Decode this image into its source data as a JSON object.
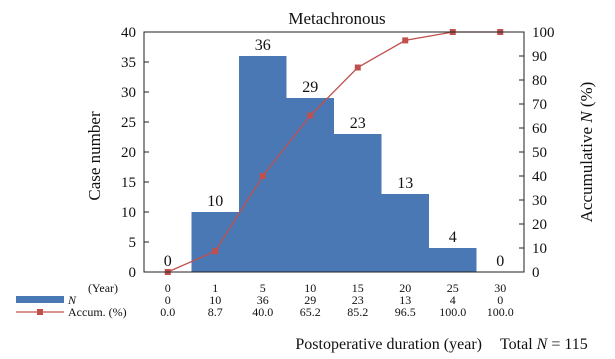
{
  "chart_data": {
    "type": "bar",
    "title": "Metachronous",
    "xlabel": "Postoperative duration (year)",
    "ylabel": "Case number",
    "y2label_prefix": "Accumulative ",
    "y2label_italic": "N",
    "y2label_suffix": " (%)",
    "ylim": [
      0,
      40
    ],
    "y2lim": [
      0,
      100
    ],
    "yticks": [
      0,
      5,
      10,
      15,
      20,
      25,
      30,
      35,
      40
    ],
    "y2ticks": [
      0,
      10,
      20,
      30,
      40,
      50,
      60,
      70,
      80,
      90,
      100
    ],
    "x": [
      0,
      1,
      5,
      10,
      15,
      20,
      25,
      30
    ],
    "x_labels": [
      "0",
      "1",
      "5",
      "10",
      "15",
      "20",
      "25",
      "30"
    ],
    "series": [
      {
        "name": "N",
        "type": "bar",
        "color": "#4a78b5",
        "values": [
          0,
          10,
          36,
          29,
          23,
          13,
          4,
          0
        ],
        "labels": [
          "0",
          "10",
          "36",
          "29",
          "23",
          "13",
          "4",
          "0"
        ]
      },
      {
        "name": "Accum. (%)",
        "type": "line",
        "color": "#c0504d",
        "values": [
          0.0,
          8.7,
          40.0,
          65.2,
          85.2,
          96.5,
          100.0,
          100.0
        ],
        "labels": [
          "0.0",
          "8.7",
          "40.0",
          "65.2",
          "85.2",
          "96.5",
          "100.0",
          "100.0"
        ]
      }
    ],
    "table": {
      "year_header": "(Year)",
      "n_header": "N",
      "accum_header": "Accum. (%)"
    },
    "total_prefix": "Total ",
    "total_italic": "N",
    "total_suffix": " = 115",
    "grid": false
  }
}
